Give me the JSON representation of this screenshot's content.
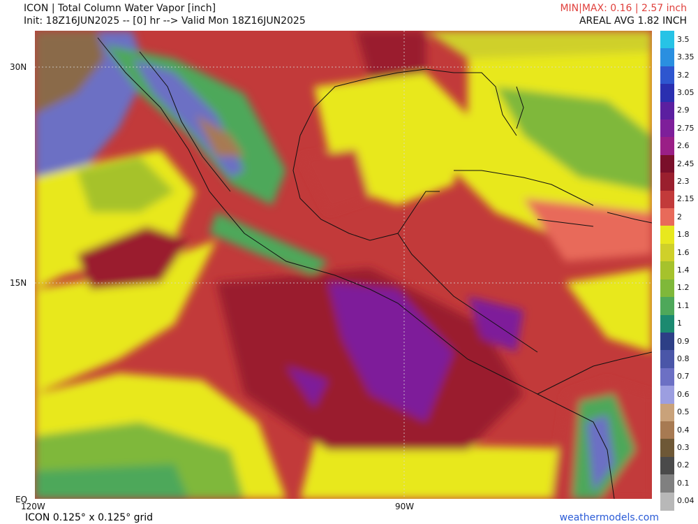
{
  "header": {
    "title": "ICON | Total Column Water Vapor [inch]",
    "init_line": "Init: 18Z16JUN2025 -- [0] hr --> Valid Mon 18Z16JUN2025",
    "minmax": "MIN|MAX: 0.16 | 2.57 inch",
    "areal_avg": "AREAL AVG 1.82 INCH"
  },
  "axes": {
    "lat_labels": [
      "30N",
      "15N",
      "EQ"
    ],
    "lon_labels": [
      "120W",
      "90W"
    ]
  },
  "footer": {
    "grid": "ICON 0.125° x 0.125° grid",
    "credit": "weathermodels.com"
  },
  "colorbar": {
    "labels": [
      "3.5",
      "3.35",
      "3.2",
      "3.05",
      "2.9",
      "2.75",
      "2.6",
      "2.45",
      "2.3",
      "2.15",
      "2",
      "1.8",
      "1.6",
      "1.4",
      "1.2",
      "1.1",
      "1",
      "0.9",
      "0.8",
      "0.7",
      "0.6",
      "0.5",
      "0.4",
      "0.3",
      "0.2",
      "0.1",
      "0.04"
    ],
    "colors": [
      "#27c3e6",
      "#2a8fe0",
      "#2e56cf",
      "#2a2fb0",
      "#5b1fa0",
      "#7e1f9a",
      "#9a1f86",
      "#7a0f2a",
      "#9a1f2e",
      "#c23a3a",
      "#e86a5a",
      "#e8e81e",
      "#cfd02a",
      "#a6c22c",
      "#7fb83a",
      "#4ea85a",
      "#1c8a70",
      "#2d3f86",
      "#4a56a8",
      "#6c70c4",
      "#9c9ee0",
      "#c9a27a",
      "#a77a52",
      "#6e5836",
      "#4a4a4a",
      "#808080",
      "#b8b8b8"
    ]
  }
}
